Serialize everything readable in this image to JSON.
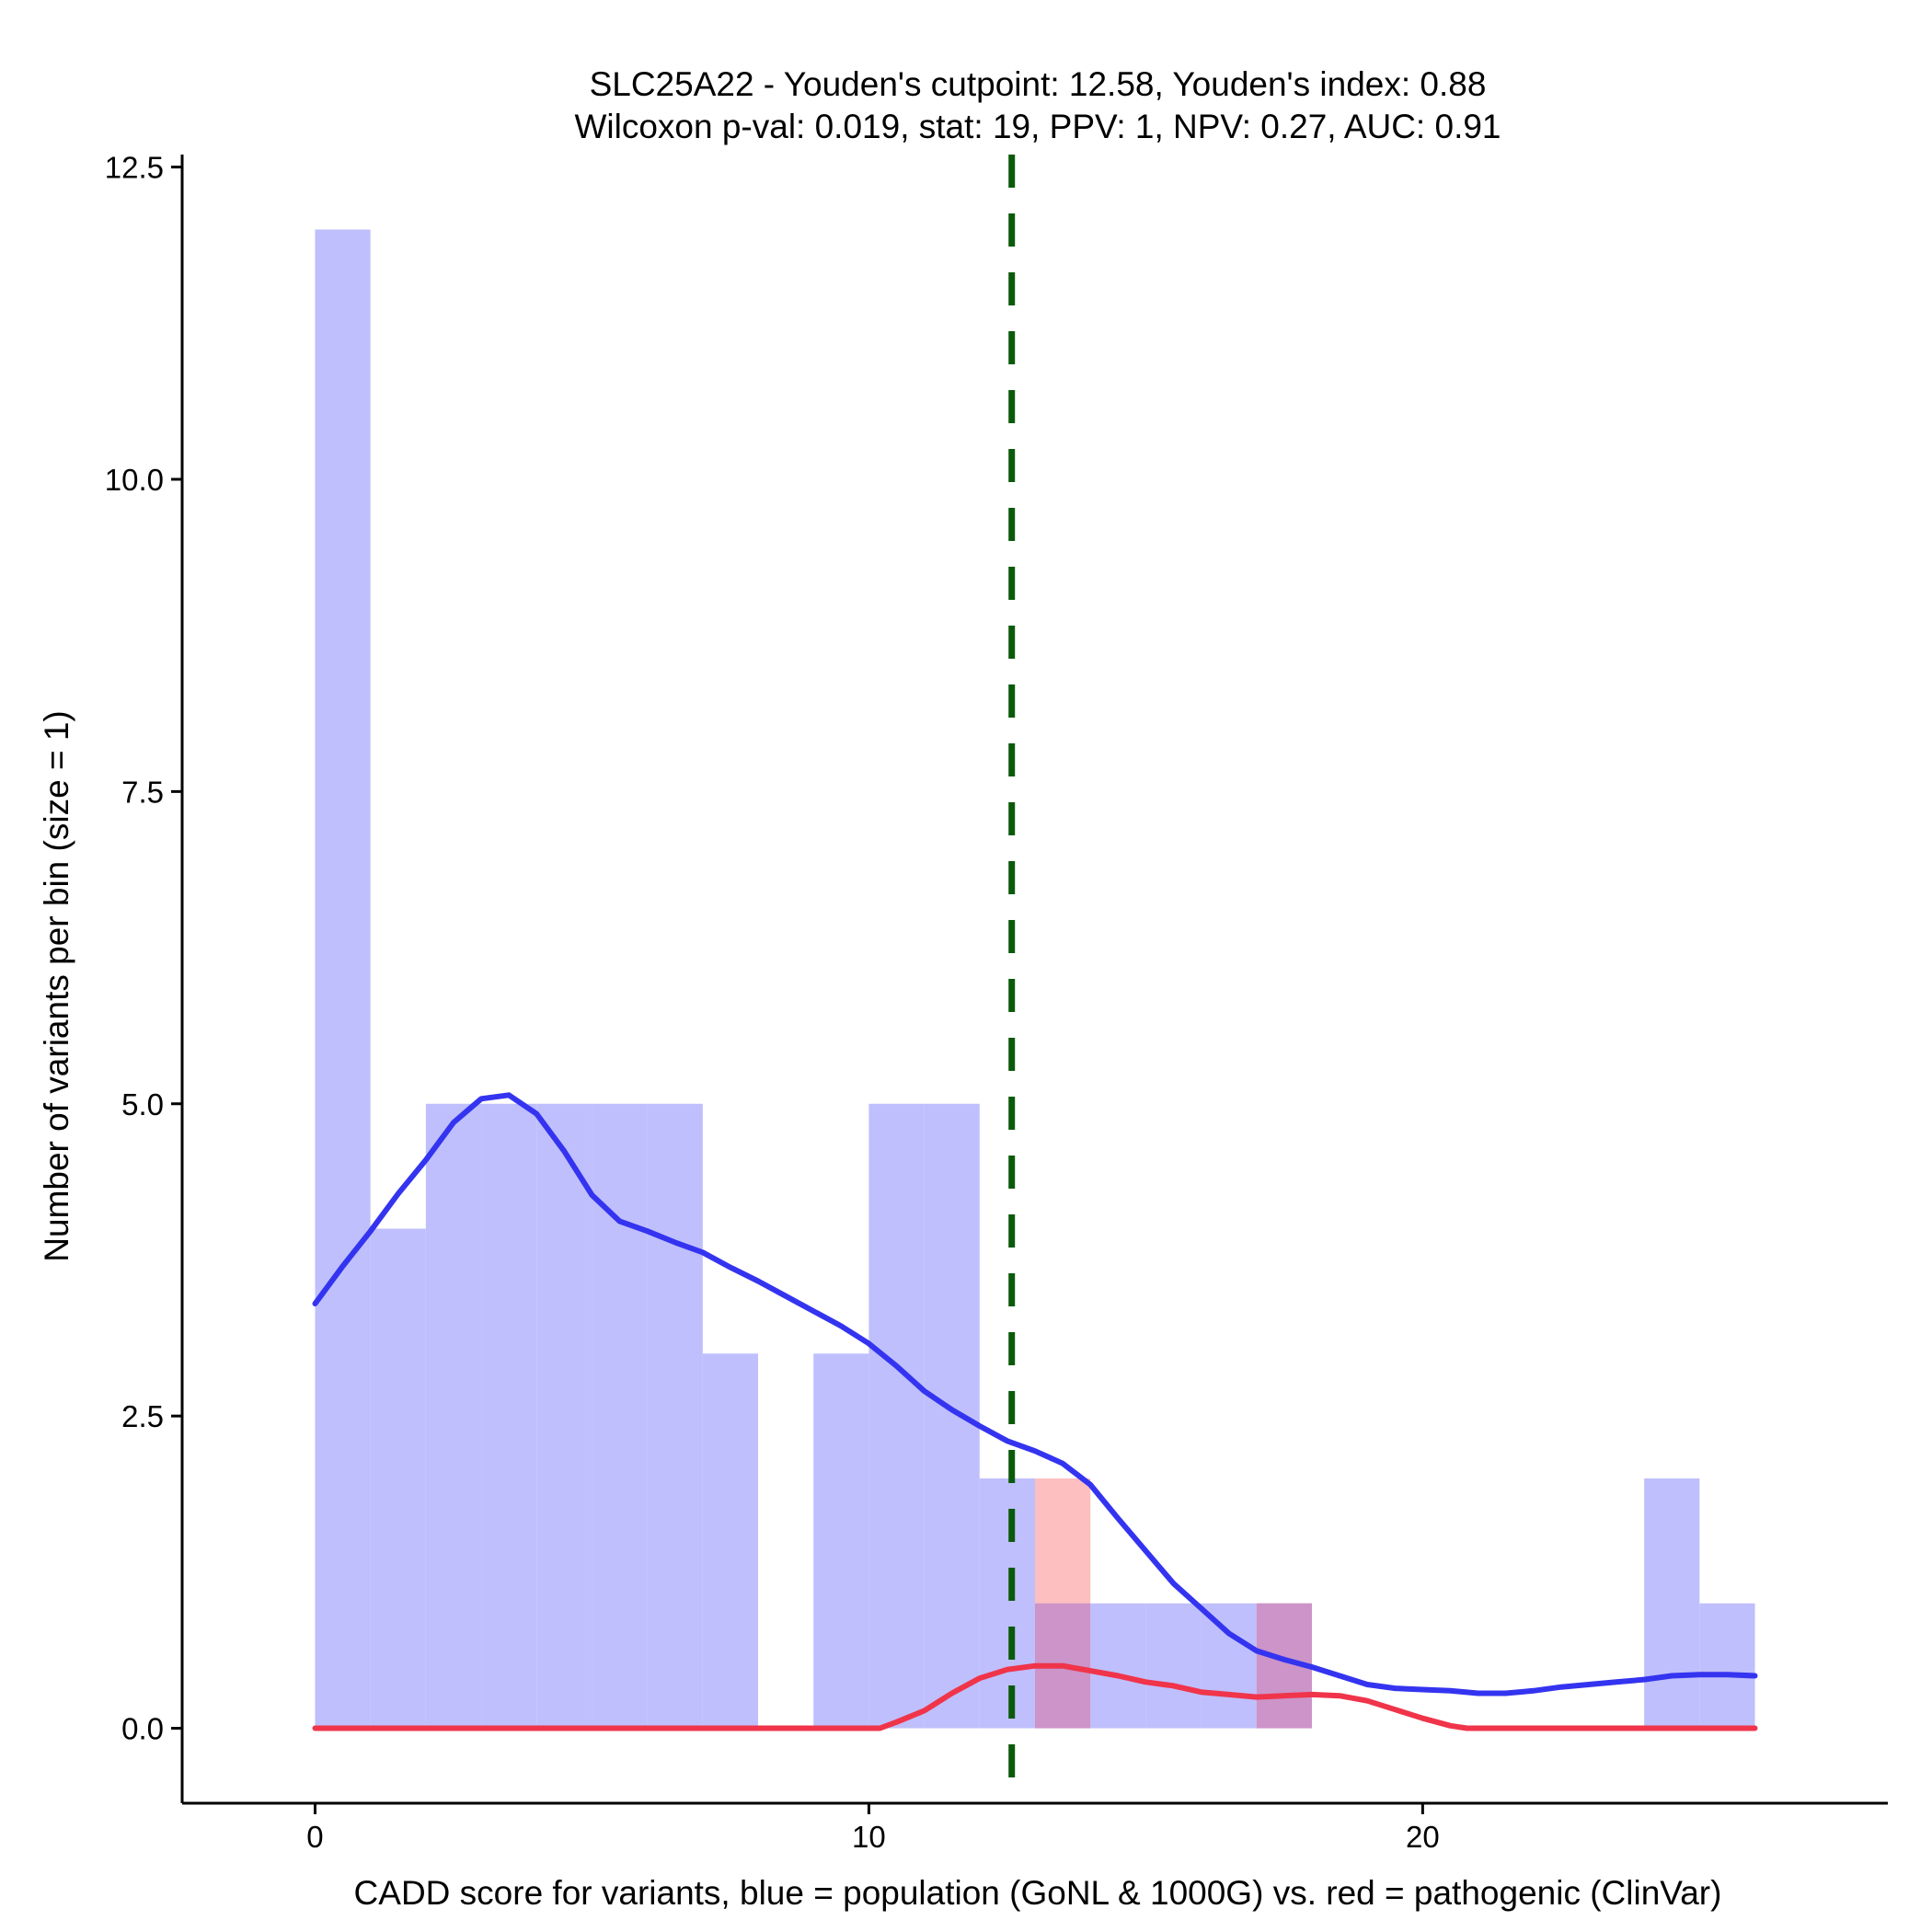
{
  "chart_data": {
    "type": "bar",
    "title": "SLC25A22 - Youden's cutpoint: 12.58, Youden's index: 0.88",
    "subtitle": "Wilcoxon p-val: 0.019, stat: 19, PPV: 1, NPV: 0.27, AUC: 0.91",
    "xlabel": "CADD score for variants, blue = population (GoNL & 1000G) vs. red = pathogenic (ClinVar)",
    "ylabel": "Number of variants per bin (size = 1)",
    "xlim": [
      -2.4,
      28.4
    ],
    "ylim": [
      -0.6,
      12.6
    ],
    "x_ticks": [
      0,
      10,
      20
    ],
    "x_tick_labels": [
      "0",
      "10",
      "20"
    ],
    "y_ticks": [
      0,
      2.5,
      5,
      7.5,
      10,
      12.5
    ],
    "y_tick_labels": [
      "0.0",
      "2.5",
      "5.0",
      "7.5",
      "10.0",
      "12.5"
    ],
    "bin_width": 1,
    "cutpoint": 12.58,
    "colors": {
      "population_bar": "#bfbffd",
      "pathogenic_bar": "#fdbfbf",
      "overlap_bar": "#cc94c8",
      "population_line": "#3434f0",
      "pathogenic_line": "#f0344a",
      "cutpoint_line": "#0b5a0b"
    },
    "series": [
      {
        "name": "population",
        "bin_starts": [
          0,
          1,
          2,
          3,
          4,
          5,
          6,
          7,
          8,
          9,
          10,
          11,
          12,
          13,
          14,
          15,
          16,
          17,
          18,
          19,
          20,
          21,
          22,
          23,
          24,
          25
        ],
        "values": [
          12,
          4,
          5,
          5,
          5,
          5,
          5,
          3,
          0,
          3,
          5,
          5,
          2,
          1,
          1,
          1,
          1,
          1,
          0,
          0,
          0,
          0,
          0,
          0,
          2,
          1
        ]
      },
      {
        "name": "pathogenic",
        "bin_starts": [
          13,
          17
        ],
        "values": [
          2,
          1
        ]
      }
    ],
    "density": [
      {
        "name": "population",
        "x": [
          0,
          0.5,
          1,
          1.5,
          2,
          2.5,
          3,
          3.5,
          4,
          4.5,
          5,
          5.5,
          6,
          6.5,
          7,
          7.5,
          8,
          8.5,
          9,
          9.5,
          10,
          10.5,
          11,
          11.5,
          12,
          12.5,
          13,
          13.5,
          14,
          14.5,
          15,
          15.5,
          16,
          16.5,
          17,
          17.5,
          18,
          18.5,
          19,
          19.5,
          20,
          20.5,
          21,
          21.5,
          22,
          22.5,
          23,
          23.5,
          24,
          24.5,
          25,
          25.5,
          26
        ],
        "y": [
          3.4,
          3.7,
          3.98,
          4.28,
          4.55,
          4.85,
          5.04,
          5.07,
          4.92,
          4.62,
          4.27,
          4.06,
          3.98,
          3.89,
          3.81,
          3.69,
          3.58,
          3.46,
          3.34,
          3.22,
          3.08,
          2.9,
          2.7,
          2.55,
          2.42,
          2.3,
          2.22,
          2.12,
          1.95,
          1.68,
          1.42,
          1.16,
          0.96,
          0.76,
          0.62,
          0.55,
          0.49,
          0.42,
          0.35,
          0.32,
          0.31,
          0.3,
          0.28,
          0.28,
          0.3,
          0.33,
          0.35,
          0.37,
          0.39,
          0.42,
          0.43,
          0.43,
          0.42
        ]
      },
      {
        "name": "pathogenic",
        "x": [
          0,
          1,
          2,
          3,
          4,
          5,
          6,
          7,
          8,
          9,
          10,
          10.2,
          10.5,
          11,
          11.5,
          12,
          12.5,
          13,
          13.5,
          14,
          14.5,
          15,
          15.5,
          16,
          16.5,
          17,
          17.5,
          18,
          18.5,
          19,
          19.5,
          20,
          20.5,
          20.8,
          21,
          22,
          23,
          24,
          25,
          26
        ],
        "y": [
          0,
          0,
          0,
          0,
          0,
          0,
          0,
          0,
          0,
          0,
          0,
          0,
          0.05,
          0.14,
          0.28,
          0.4,
          0.47,
          0.5,
          0.5,
          0.46,
          0.42,
          0.37,
          0.34,
          0.29,
          0.27,
          0.25,
          0.26,
          0.27,
          0.26,
          0.22,
          0.15,
          0.08,
          0.02,
          0,
          0,
          0,
          0,
          0,
          0,
          0
        ]
      }
    ]
  }
}
